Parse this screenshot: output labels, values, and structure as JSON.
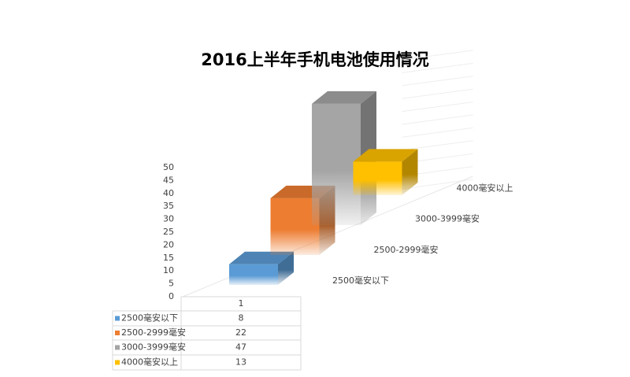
{
  "chart_data": {
    "type": "bar3d",
    "title": "2016上半年手机电池使用情况",
    "categories": [
      "1"
    ],
    "series": [
      {
        "name": "2500毫安以下",
        "color": "#5b9bd5",
        "values": [
          8
        ]
      },
      {
        "name": "2500-2999毫安",
        "color": "#ed7d31",
        "values": [
          22
        ]
      },
      {
        "name": "3000-3999毫安",
        "color": "#a5a5a5",
        "values": [
          47
        ]
      },
      {
        "name": "4000毫安以上",
        "color": "#ffc000",
        "values": [
          13
        ]
      }
    ],
    "ylim": [
      0,
      50
    ],
    "yticks": [
      0,
      5,
      10,
      15,
      20,
      25,
      30,
      35,
      40,
      45,
      50
    ],
    "grid": true,
    "data_table": true
  }
}
